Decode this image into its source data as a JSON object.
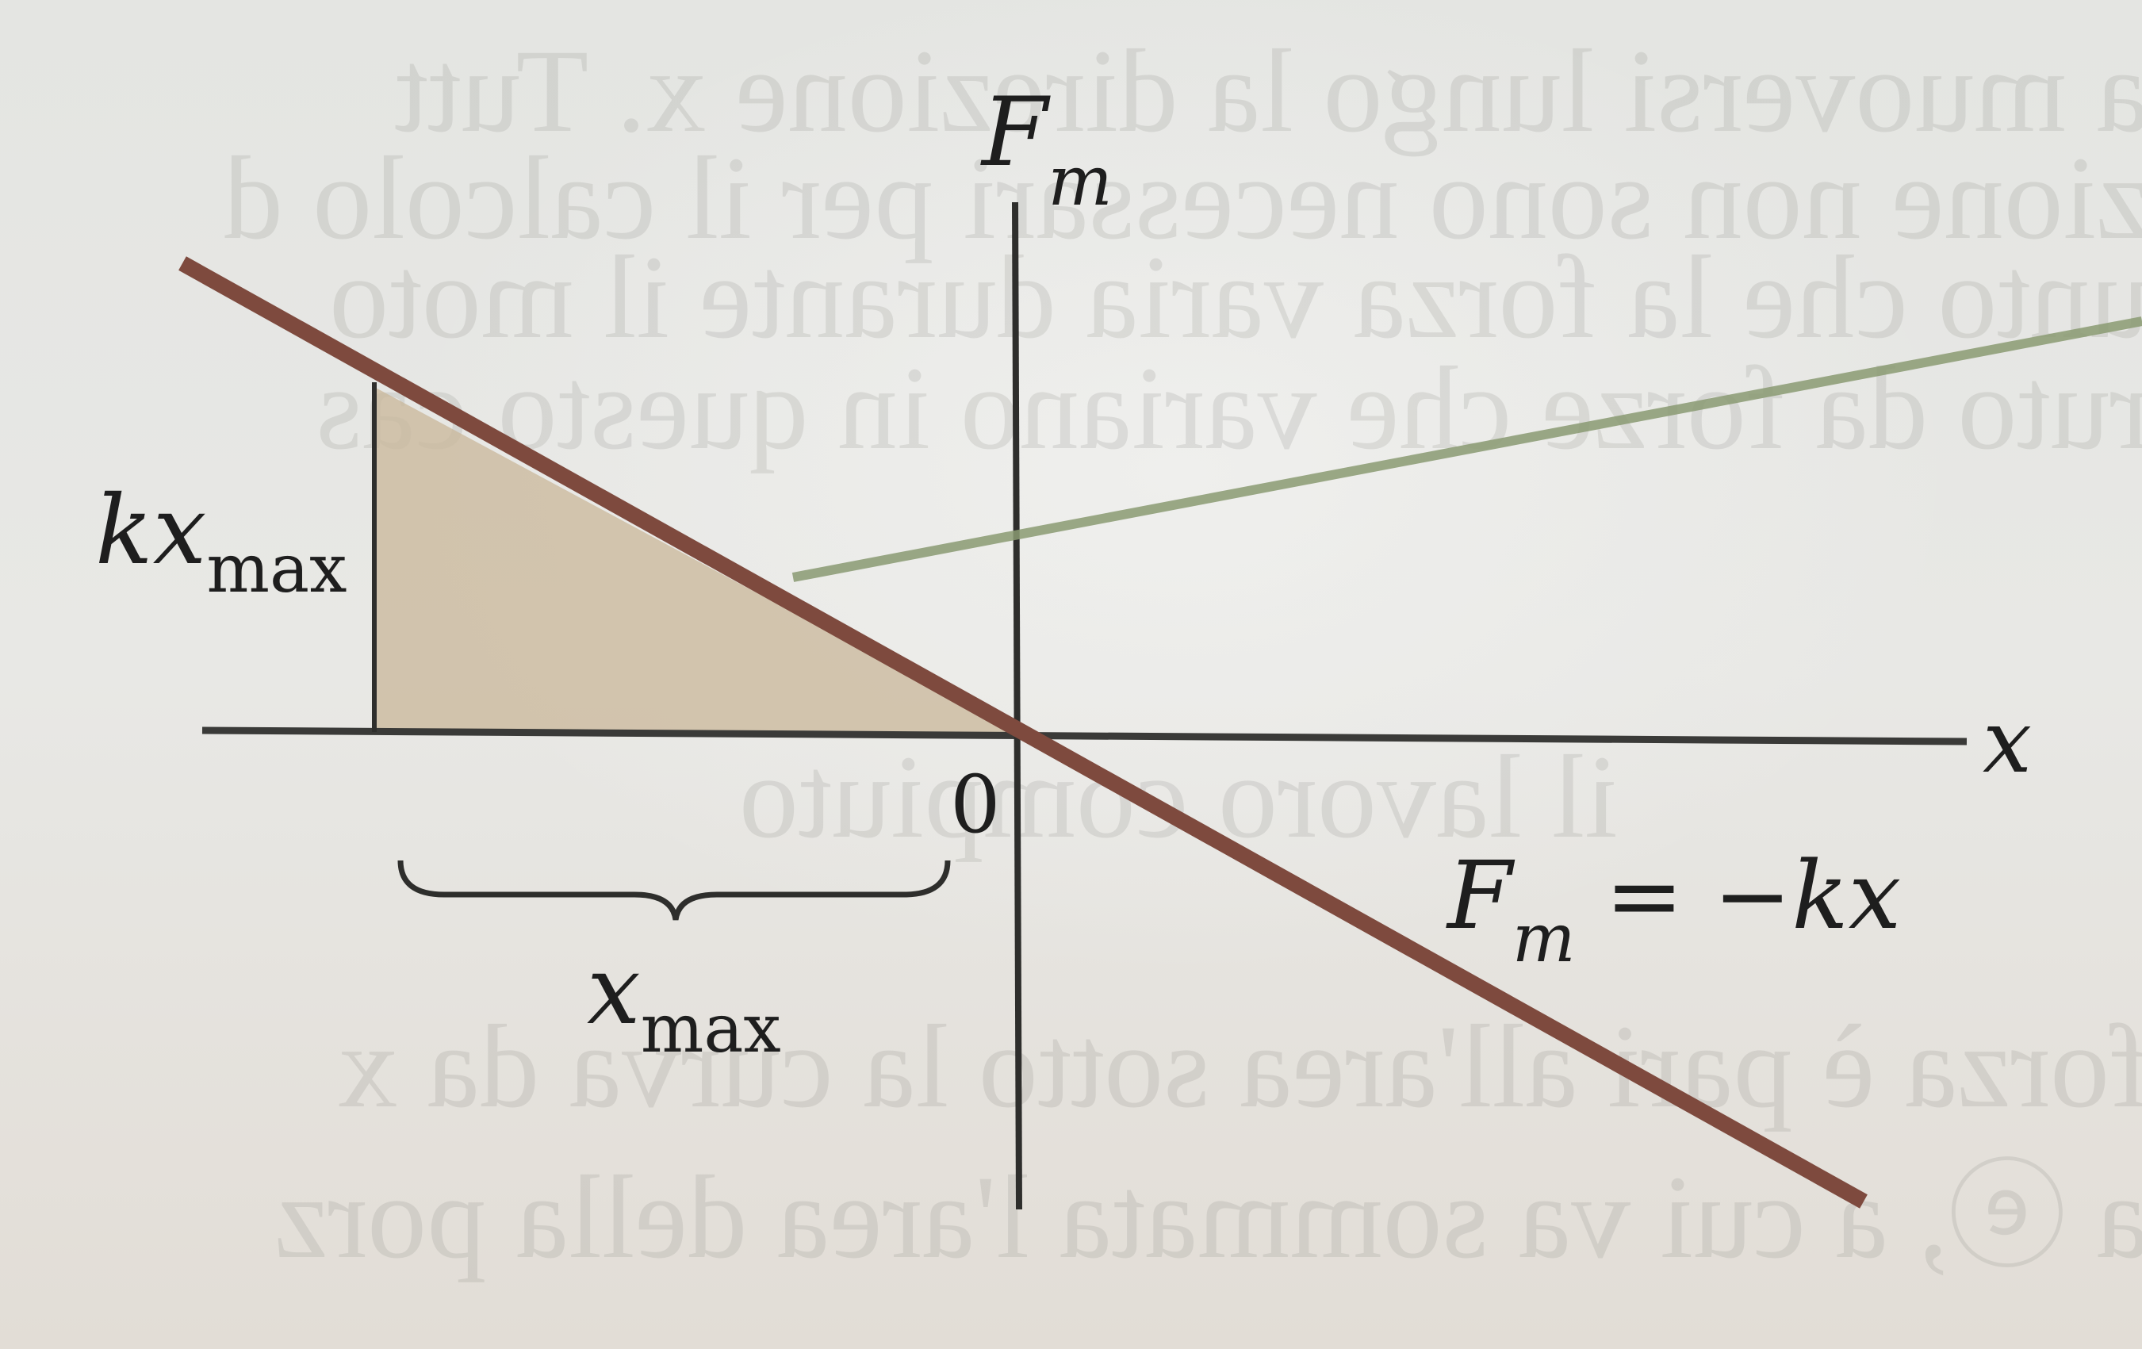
{
  "labels": {
    "y_axis_main": "F",
    "y_axis_sub": "m",
    "x_axis": "x",
    "origin": "0",
    "kx_main": "kx",
    "kx_sub": "max",
    "xmax_main": "x",
    "xmax_sub": "max",
    "eq_f": "F",
    "eq_sub": "m",
    "eq_rest": " = −kx"
  },
  "bleed_through": [
    "a muoversi lungo la direzione x. Tutt",
    "zione non sono necessari per il calcolo d",
    "unto che la forza varia durante il moto",
    "ruto da forze che variano in questo cas",
    "il lavoro compiuto",
    "forza è pari all'area sotto la curva da x",
    "a ⓔ, a cui va sommata l'area della porz"
  ],
  "colors": {
    "line": "#7e4a3e",
    "axis": "#3a3a38",
    "shade": "#c9b79a",
    "green_line": "#8a9a72"
  }
}
